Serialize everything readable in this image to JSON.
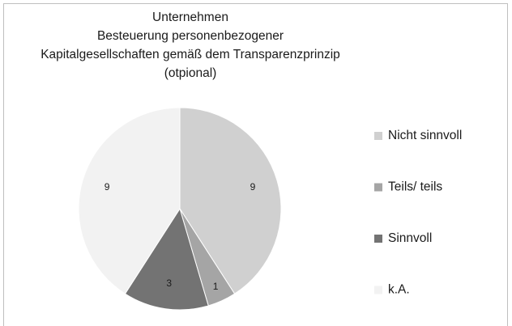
{
  "chart_data": {
    "type": "pie",
    "title": [
      "Unternehmen",
      "Besteuerung personenbezogener",
      "Kapitalgesellschaften gemäß dem Transparenzprinzip",
      "(otpional)"
    ],
    "categories": [
      "Nicht sinnvoll",
      "Teils/ teils",
      "Sinnvoll",
      "k.A."
    ],
    "values": [
      9,
      1,
      3,
      9
    ],
    "colors": [
      "#d0d0d0",
      "#a5a5a5",
      "#737373",
      "#f2f2f2"
    ],
    "legend": "right"
  }
}
